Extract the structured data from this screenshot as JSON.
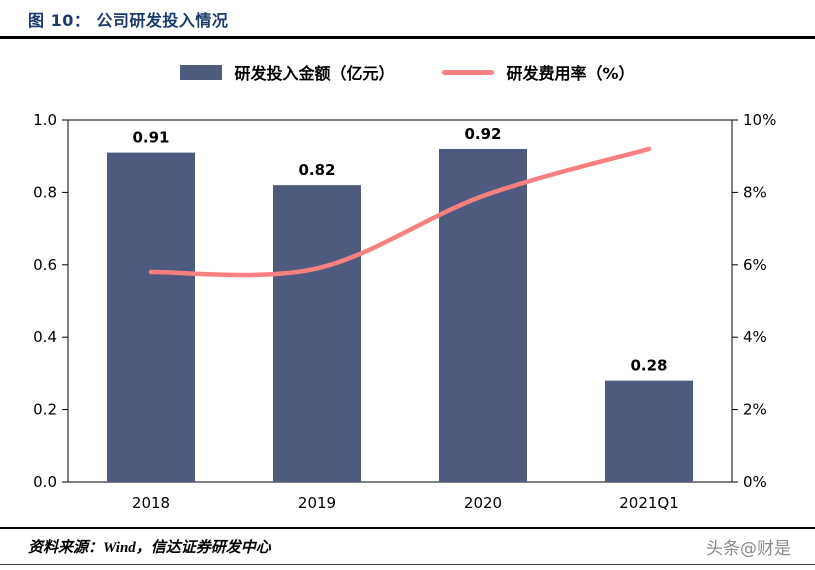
{
  "header": {
    "title": "图 10： 公司研发投入情况"
  },
  "legend": {
    "bar_label": "研发投入金额（亿元）",
    "line_label": "研发费用率（%）"
  },
  "colors": {
    "bar": "#4e5b7e",
    "line": "#f98080",
    "title": "#1b3a6b",
    "axis": "#000000",
    "watermark": "#8c8c8c"
  },
  "chart_data": {
    "type": "bar",
    "subtype": "bar+line combo, dual axis",
    "categories": [
      "2018",
      "2019",
      "2020",
      "2021Q1"
    ],
    "series": [
      {
        "name": "研发投入金额（亿元）",
        "type": "bar",
        "axis": "left",
        "values": [
          0.91,
          0.82,
          0.92,
          0.28
        ],
        "labels": [
          "0.91",
          "0.82",
          "0.92",
          "0.28"
        ],
        "color": "#4e5b7e"
      },
      {
        "name": "研发费用率（%）",
        "type": "line",
        "axis": "right",
        "values": [
          5.8,
          5.9,
          7.9,
          9.2
        ],
        "color": "#f98080"
      }
    ],
    "left_axis": {
      "min": 0.0,
      "max": 1.0,
      "ticks": [
        "0.0",
        "0.2",
        "0.4",
        "0.6",
        "0.8",
        "1.0"
      ]
    },
    "right_axis": {
      "min": 0,
      "max": 10,
      "ticks": [
        "0%",
        "2%",
        "4%",
        "6%",
        "8%",
        "10%"
      ]
    },
    "grid": false,
    "legend_position": "top"
  },
  "footer": {
    "source": "资料来源：Wind，信达证券研发中心",
    "watermark": "头条@财是"
  }
}
